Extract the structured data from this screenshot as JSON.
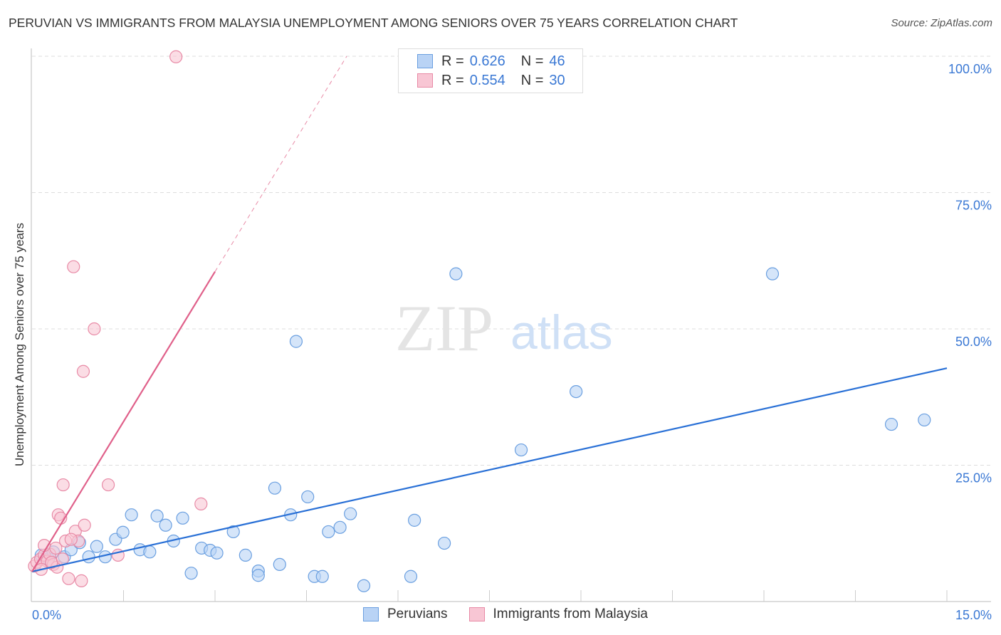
{
  "chart_data": {
    "type": "scatter",
    "title": "PERUVIAN VS IMMIGRANTS FROM MALAYSIA UNEMPLOYMENT AMONG SENIORS OVER 75 YEARS CORRELATION CHART",
    "source": "Source: ZipAtlas.com",
    "xlabel": "",
    "ylabel": "Unemployment Among Seniors over 75 years",
    "xlim": [
      0,
      15
    ],
    "ylim": [
      0,
      100
    ],
    "x_tick_labels": [
      "0.0%",
      "15.0%"
    ],
    "y_ticks": [
      25,
      50,
      75,
      100
    ],
    "y_tick_labels": [
      "25.0%",
      "50.0%",
      "75.0%",
      "100.0%"
    ],
    "grid": true,
    "watermark": "ZIPatlas",
    "legend": {
      "placement": "top-center",
      "entries": [
        {
          "r_label": "R =",
          "r": "0.626",
          "n_label": "N =",
          "n": "46"
        },
        {
          "r_label": "R =",
          "r": "0.554",
          "n_label": "N =",
          "n": "30"
        }
      ]
    },
    "series": [
      {
        "name": "Peruvians",
        "color": "#6a9fe0",
        "fill": "#b9d3f5",
        "line_color": "#2970d6",
        "trend": {
          "x": [
            0,
            15
          ],
          "y": [
            5.5,
            42.8
          ]
        },
        "points": [
          [
            0.15,
            8.5
          ],
          [
            0.27,
            7.8
          ],
          [
            0.35,
            9.1
          ],
          [
            0.53,
            8.2
          ],
          [
            0.64,
            9.5
          ],
          [
            0.78,
            10.8
          ],
          [
            0.93,
            8.2
          ],
          [
            1.06,
            10.1
          ],
          [
            1.2,
            8.2
          ],
          [
            1.37,
            11.4
          ],
          [
            1.49,
            12.7
          ],
          [
            1.63,
            15.9
          ],
          [
            1.77,
            9.5
          ],
          [
            1.93,
            9.1
          ],
          [
            2.05,
            15.7
          ],
          [
            2.19,
            14.0
          ],
          [
            2.32,
            11.1
          ],
          [
            2.47,
            15.3
          ],
          [
            2.61,
            5.2
          ],
          [
            2.78,
            9.8
          ],
          [
            2.92,
            9.4
          ],
          [
            3.03,
            8.9
          ],
          [
            3.3,
            12.8
          ],
          [
            3.5,
            8.5
          ],
          [
            3.71,
            5.6
          ],
          [
            3.71,
            4.8
          ],
          [
            3.98,
            20.8
          ],
          [
            4.06,
            6.8
          ],
          [
            4.24,
            15.9
          ],
          [
            4.33,
            47.7
          ],
          [
            4.52,
            19.2
          ],
          [
            4.63,
            4.6
          ],
          [
            4.76,
            4.6
          ],
          [
            4.86,
            12.8
          ],
          [
            5.05,
            13.6
          ],
          [
            5.22,
            16.1
          ],
          [
            5.44,
            2.9
          ],
          [
            6.21,
            4.6
          ],
          [
            6.27,
            14.9
          ],
          [
            6.76,
            10.7
          ],
          [
            6.95,
            60.1
          ],
          [
            8.02,
            27.8
          ],
          [
            8.92,
            38.5
          ],
          [
            12.14,
            60.1
          ],
          [
            14.09,
            32.5
          ],
          [
            14.63,
            33.3
          ]
        ]
      },
      {
        "name": "Immigrants from Malaysia",
        "color": "#e88aa6",
        "fill": "#f8c6d4",
        "line_color": "#e0608a",
        "trend": {
          "x": [
            0,
            3.0
          ],
          "y": [
            5.5,
            60.5
          ]
        },
        "trend_dashed": {
          "x": [
            3.0,
            5.16
          ],
          "y": [
            60.5,
            100
          ]
        },
        "points": [
          [
            0.04,
            6.5
          ],
          [
            0.08,
            7.2
          ],
          [
            0.14,
            7.8
          ],
          [
            0.2,
            8.5
          ],
          [
            0.25,
            7.4
          ],
          [
            0.29,
            8.7
          ],
          [
            0.35,
            6.8
          ],
          [
            0.41,
            6.3
          ],
          [
            0.2,
            10.3
          ],
          [
            0.43,
            15.9
          ],
          [
            0.47,
            15.3
          ],
          [
            0.51,
            21.4
          ],
          [
            0.55,
            11.1
          ],
          [
            0.6,
            4.2
          ],
          [
            0.68,
            61.4
          ],
          [
            0.71,
            12.9
          ],
          [
            0.76,
            11.1
          ],
          [
            0.81,
            3.8
          ],
          [
            0.84,
            42.2
          ],
          [
            0.86,
            14.0
          ],
          [
            1.02,
            50.0
          ],
          [
            1.25,
            21.4
          ],
          [
            1.41,
            8.5
          ],
          [
            2.36,
            99.9
          ],
          [
            2.77,
            17.9
          ],
          [
            0.64,
            11.4
          ],
          [
            0.15,
            5.9
          ],
          [
            0.32,
            7.2
          ],
          [
            0.5,
            7.8
          ],
          [
            0.39,
            9.8
          ]
        ]
      }
    ]
  }
}
